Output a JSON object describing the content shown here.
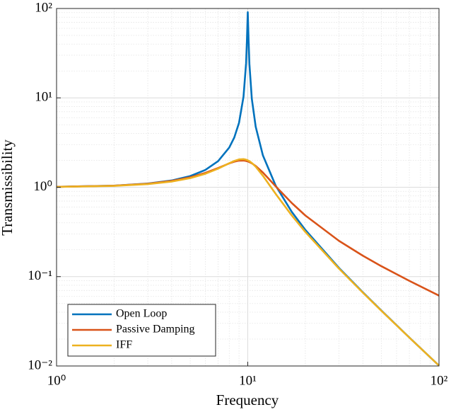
{
  "chart_data": {
    "type": "line",
    "x_label": "Frequency",
    "y_label": "Transmissibility",
    "x_log": true,
    "y_log": true,
    "grid": true,
    "minor_grid": true,
    "legend_position": "lower-left",
    "xlim": [
      1,
      100
    ],
    "ylim": [
      0.01,
      100
    ],
    "xticks": [
      {
        "value": 1,
        "label": "10⁰"
      },
      {
        "value": 10,
        "label": "10¹"
      },
      {
        "value": 100,
        "label": "10²"
      }
    ],
    "yticks": [
      {
        "value": 0.01,
        "label": "10⁻²"
      },
      {
        "value": 0.1,
        "label": "10⁻¹"
      },
      {
        "value": 1,
        "label": "10⁰"
      },
      {
        "value": 10,
        "label": "10¹"
      },
      {
        "value": 100,
        "label": "10²"
      }
    ],
    "x": [
      1,
      2,
      3,
      4,
      5,
      6,
      7,
      8,
      8.5,
      9,
      9.5,
      9.8,
      9.9,
      10,
      10.1,
      10.2,
      10.5,
      11,
      12,
      14,
      17,
      20,
      30,
      40,
      50,
      70,
      100
    ],
    "series": [
      {
        "name": "Open Loop",
        "color": "#0072BD",
        "values": [
          1.01,
          1.042,
          1.099,
          1.19,
          1.333,
          1.5625,
          1.96,
          2.78,
          3.6,
          5.26,
          10.3,
          24.4,
          44,
          90.9,
          43.5,
          23.9,
          9.76,
          4.76,
          2.27,
          1.04,
          0.529,
          0.333,
          0.125,
          0.0667,
          0.0417,
          0.0208,
          0.0101
        ]
      },
      {
        "name": "Passive Damping",
        "color": "#D95319",
        "values": [
          1.01,
          1.041,
          1.095,
          1.177,
          1.292,
          1.447,
          1.642,
          1.849,
          1.933,
          1.985,
          1.99,
          1.969,
          1.957,
          1.944,
          1.929,
          1.912,
          1.852,
          1.73,
          1.46,
          1.024,
          0.665,
          0.4834,
          0.2511,
          0.1712,
          0.1307,
          0.0896,
          0.0613
        ]
      },
      {
        "name": "IFF",
        "color": "#EDB120",
        "values": [
          1.009,
          1.036,
          1.084,
          1.158,
          1.265,
          1.415,
          1.617,
          1.858,
          1.97,
          2.047,
          2.062,
          2.034,
          2.019,
          2.0,
          1.979,
          1.955,
          1.87,
          1.699,
          1.344,
          0.842,
          0.4826,
          0.3162,
          0.1229,
          0.0661,
          0.04144,
          0.02078,
          0.0101
        ]
      }
    ]
  }
}
